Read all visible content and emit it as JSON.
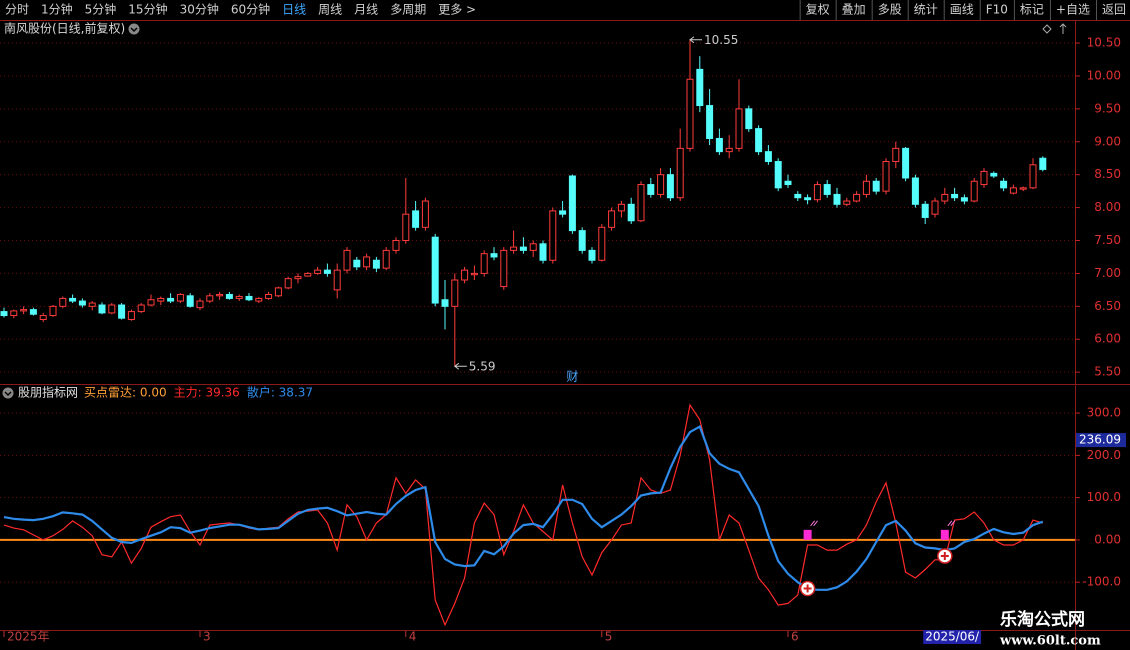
{
  "toolbar": {
    "left": [
      "分时",
      "1分钟",
      "5分钟",
      "15分钟",
      "30分钟",
      "60分钟",
      "日线",
      "周线",
      "月线",
      "多周期",
      "更多 >"
    ],
    "active_index": 6,
    "right": [
      "复权",
      "叠加",
      "多股",
      "统计",
      "画线",
      "F10",
      "标记",
      "+自选",
      "返回"
    ]
  },
  "chart_data": [
    {
      "type": "candlestick",
      "title": "南风股份(日线,前复权)",
      "categories": [
        "2025年",
        null,
        null,
        null,
        null,
        null,
        null,
        null,
        null,
        null,
        null,
        null,
        null,
        null,
        null,
        null,
        null,
        null,
        null,
        null,
        "3",
        null,
        null,
        null,
        null,
        null,
        null,
        null,
        null,
        null,
        null,
        null,
        null,
        null,
        null,
        null,
        null,
        null,
        null,
        null,
        null,
        "4",
        null,
        null,
        null,
        null,
        null,
        null,
        null,
        null,
        null,
        null,
        null,
        null,
        null,
        null,
        null,
        null,
        null,
        null,
        null,
        "5",
        null,
        null,
        null,
        null,
        null,
        null,
        null,
        null,
        null,
        null,
        null,
        null,
        null,
        null,
        null,
        null,
        null,
        null,
        "6",
        null,
        null,
        null,
        null,
        null,
        null,
        null,
        null,
        null,
        null,
        null,
        null,
        null,
        "2025/06/",
        null,
        null,
        null,
        null,
        null,
        null,
        null,
        null,
        null,
        null,
        null,
        null
      ],
      "highlight_index": 94,
      "open": [
        6.42,
        6.36,
        6.43,
        6.45,
        6.3,
        6.36,
        6.5,
        6.62,
        6.58,
        6.5,
        6.52,
        6.4,
        6.52,
        6.3,
        6.42,
        6.52,
        6.58,
        6.62,
        6.58,
        6.66,
        6.48,
        6.58,
        6.66,
        6.68,
        6.62,
        6.65,
        6.58,
        6.62,
        6.66,
        6.78,
        6.92,
        6.96,
        7.0,
        7.05,
        6.75,
        7.05,
        7.2,
        7.1,
        7.2,
        7.08,
        7.35,
        7.5,
        7.95,
        7.7,
        7.55,
        6.6,
        6.5,
        6.9,
        6.98,
        7.0,
        7.3,
        6.8,
        7.35,
        7.4,
        7.35,
        7.45,
        7.2,
        7.95,
        8.48,
        7.65,
        7.35,
        7.2,
        7.7,
        7.95,
        8.05,
        7.8,
        8.35,
        8.2,
        8.5,
        8.15,
        8.9,
        10.1,
        9.55,
        9.05,
        8.85,
        8.9,
        9.5,
        9.2,
        8.85,
        8.7,
        8.4,
        8.2,
        8.15,
        8.12,
        8.35,
        8.2,
        8.05,
        8.1,
        8.2,
        8.4,
        8.25,
        8.7,
        8.9,
        8.45,
        8.05,
        7.9,
        8.1,
        8.2,
        8.15,
        8.1,
        8.35,
        8.52,
        8.4,
        8.22,
        8.28,
        8.3,
        8.75
      ],
      "high": [
        6.48,
        6.45,
        6.5,
        6.48,
        6.4,
        6.52,
        6.65,
        6.68,
        6.62,
        6.58,
        6.56,
        6.55,
        6.55,
        6.45,
        6.55,
        6.68,
        6.65,
        6.7,
        6.7,
        6.7,
        6.62,
        6.7,
        6.72,
        6.72,
        6.68,
        6.7,
        6.64,
        6.72,
        6.8,
        6.95,
        7.0,
        7.02,
        7.1,
        7.15,
        7.15,
        7.4,
        7.25,
        7.3,
        7.25,
        7.4,
        7.55,
        8.45,
        8.1,
        8.15,
        7.6,
        6.9,
        7.0,
        7.1,
        7.12,
        7.35,
        7.4,
        7.4,
        7.65,
        7.55,
        7.5,
        7.5,
        8.0,
        8.1,
        8.5,
        7.7,
        7.4,
        7.75,
        8.0,
        8.1,
        8.15,
        8.4,
        8.45,
        8.6,
        8.6,
        9.2,
        10.55,
        10.3,
        9.8,
        9.2,
        9.1,
        9.95,
        9.55,
        9.25,
        8.95,
        8.75,
        8.5,
        8.25,
        8.2,
        8.4,
        8.42,
        8.3,
        8.15,
        8.25,
        8.5,
        8.45,
        8.75,
        9.0,
        8.92,
        8.5,
        8.1,
        8.15,
        8.3,
        8.3,
        8.2,
        8.45,
        8.6,
        8.55,
        8.45,
        8.35,
        8.32,
        8.75,
        8.78
      ],
      "low": [
        6.33,
        6.32,
        6.38,
        6.36,
        6.26,
        6.34,
        6.47,
        6.55,
        6.48,
        6.44,
        6.38,
        6.38,
        6.3,
        6.28,
        6.4,
        6.5,
        6.52,
        6.55,
        6.55,
        6.48,
        6.44,
        6.55,
        6.6,
        6.6,
        6.58,
        6.58,
        6.55,
        6.6,
        6.64,
        6.76,
        6.85,
        6.95,
        6.98,
        6.95,
        6.62,
        7.0,
        7.05,
        7.05,
        7.02,
        7.05,
        7.3,
        7.45,
        7.65,
        7.65,
        6.5,
        6.15,
        5.59,
        6.85,
        6.9,
        6.95,
        7.2,
        6.75,
        7.3,
        7.3,
        7.25,
        7.15,
        7.15,
        7.85,
        7.6,
        7.3,
        7.15,
        7.18,
        7.65,
        7.85,
        7.75,
        7.78,
        8.15,
        8.15,
        8.1,
        8.1,
        8.85,
        9.45,
        8.95,
        8.8,
        8.75,
        8.85,
        9.15,
        8.8,
        8.65,
        8.25,
        8.3,
        8.1,
        8.05,
        8.08,
        8.15,
        8.0,
        8.02,
        8.08,
        8.15,
        8.2,
        8.2,
        8.6,
        8.4,
        8.0,
        7.75,
        7.85,
        8.05,
        8.1,
        8.05,
        8.08,
        8.3,
        8.45,
        8.25,
        8.2,
        8.25,
        8.28,
        8.55
      ],
      "close": [
        6.36,
        6.43,
        6.45,
        6.38,
        6.36,
        6.5,
        6.62,
        6.58,
        6.52,
        6.55,
        6.4,
        6.52,
        6.32,
        6.42,
        6.52,
        6.6,
        6.62,
        6.58,
        6.68,
        6.5,
        6.58,
        6.66,
        6.68,
        6.62,
        6.65,
        6.6,
        6.62,
        6.68,
        6.78,
        6.92,
        6.95,
        7.0,
        7.05,
        7.0,
        7.05,
        7.35,
        7.1,
        7.25,
        7.08,
        7.35,
        7.5,
        7.9,
        7.7,
        8.1,
        6.55,
        6.5,
        6.9,
        7.05,
        7.0,
        7.3,
        7.25,
        7.35,
        7.4,
        7.35,
        7.45,
        7.2,
        7.95,
        7.9,
        7.65,
        7.35,
        7.2,
        7.7,
        7.95,
        8.05,
        7.8,
        8.35,
        8.2,
        8.5,
        8.15,
        8.9,
        9.95,
        9.55,
        9.05,
        8.85,
        8.9,
        9.5,
        9.2,
        8.85,
        8.7,
        8.3,
        8.35,
        8.15,
        8.12,
        8.35,
        8.2,
        8.05,
        8.1,
        8.2,
        8.4,
        8.25,
        8.7,
        8.9,
        8.45,
        8.05,
        7.85,
        8.1,
        8.2,
        8.15,
        8.1,
        8.4,
        8.55,
        8.48,
        8.3,
        8.3,
        8.3,
        8.65,
        8.58
      ],
      "up_color": "#ff3c3c",
      "down_color": "#54fcfc",
      "ylim": [
        5.32,
        10.85
      ],
      "yticks": [
        {
          "value": 5.5,
          "label": "5.50"
        },
        {
          "value": 6,
          "label": "6.00"
        },
        {
          "value": 6.5,
          "label": "6.50"
        },
        {
          "value": 7,
          "label": "7.00"
        },
        {
          "value": 7.5,
          "label": "7.50"
        },
        {
          "value": 8,
          "label": "8.00"
        },
        {
          "value": 8.5,
          "label": "8.50"
        },
        {
          "value": 9,
          "label": "9.00"
        },
        {
          "value": 9.5,
          "label": "9.50"
        },
        {
          "value": 10,
          "label": "10.00"
        },
        {
          "value": 10.5,
          "label": "10.50"
        }
      ],
      "grid": true,
      "annotations": [
        {
          "index": 70,
          "value": 10.55
        },
        {
          "index": 46,
          "value": 5.59
        }
      ],
      "marker": {
        "index": 58,
        "text": "财"
      }
    },
    {
      "type": "line",
      "title": "股朋指标网",
      "legend_labels": [
        {
          "text": "买点雷达: 0.00",
          "color": "#ff9f3a"
        },
        {
          "text": "主力: 39.36",
          "color": "#ff2a2a"
        },
        {
          "text": "散户: 38.37",
          "color": "#2e8bea"
        }
      ],
      "series": [
        {
          "name": "主力",
          "color": "#ff2a2a",
          "values": [
            35,
            28,
            24,
            12,
            0,
            10,
            25,
            45,
            30,
            10,
            -35,
            -40,
            -5,
            -55,
            -20,
            30,
            43,
            55,
            59,
            20,
            -12,
            35,
            38,
            40,
            35,
            28,
            24,
            28,
            30,
            50,
            66,
            68,
            71,
            40,
            -24,
            83,
            55,
            0,
            40,
            60,
            147,
            110,
            142,
            120,
            -142,
            -201,
            -150,
            -90,
            40,
            87,
            60,
            -35,
            20,
            83,
            40,
            20,
            0,
            130,
            40,
            -40,
            -83,
            -30,
            0,
            35,
            40,
            147,
            118,
            110,
            118,
            200,
            319,
            284,
            190,
            0,
            59,
            40,
            -24,
            -90,
            -118,
            -154,
            -150,
            -130,
            -12,
            -12,
            -24,
            -24,
            -10,
            0,
            35,
            90,
            135,
            40,
            -76,
            -90,
            -70,
            -47,
            -47,
            47,
            50,
            66,
            40,
            0,
            -12,
            -12,
            0,
            47,
            40
          ]
        },
        {
          "name": "散户",
          "color": "#2e8bea",
          "values": [
            54,
            50,
            48,
            47,
            50,
            56,
            65,
            63,
            60,
            45,
            25,
            5,
            -5,
            -7,
            2,
            10,
            18,
            30,
            28,
            17,
            22,
            28,
            32,
            36,
            36,
            30,
            25,
            26,
            28,
            45,
            62,
            71,
            74,
            76,
            68,
            58,
            62,
            66,
            62,
            60,
            85,
            104,
            118,
            125,
            -5,
            -45,
            -58,
            -62,
            -60,
            -26,
            -34,
            -15,
            15,
            35,
            38,
            30,
            60,
            95,
            95,
            85,
            50,
            30,
            45,
            60,
            80,
            105,
            110,
            112,
            170,
            220,
            255,
            268,
            205,
            180,
            168,
            160,
            120,
            80,
            10,
            -50,
            -80,
            -100,
            -115,
            -118,
            -118,
            -112,
            -98,
            -75,
            -45,
            -5,
            35,
            45,
            22,
            -8,
            -18,
            -20,
            -24,
            -20,
            -5,
            2,
            15,
            26,
            18,
            14,
            17,
            35,
            43
          ]
        }
      ],
      "reference_line": {
        "value": 0,
        "color": "#ff8c1a"
      },
      "ylim": [
        -213,
        364
      ],
      "yticks": [
        {
          "value": -100,
          "label": "-100.0"
        },
        {
          "value": 0,
          "label": "0.00"
        },
        {
          "value": 100,
          "label": "100.0"
        },
        {
          "value": 200,
          "label": "200.0"
        },
        {
          "value": 300,
          "label": "300.0"
        }
      ],
      "grid": true,
      "cursor_label": {
        "value": 236.09,
        "label": "236.09"
      },
      "buy_marks": [
        {
          "index": 82,
          "value": 12
        },
        {
          "index": 96,
          "value": 12
        }
      ],
      "signals": [
        {
          "index": 82,
          "value": -115
        },
        {
          "index": 96,
          "value": -38
        }
      ]
    }
  ],
  "watermark": {
    "title": "乐淘公式网",
    "url": "www.60lt.com"
  }
}
